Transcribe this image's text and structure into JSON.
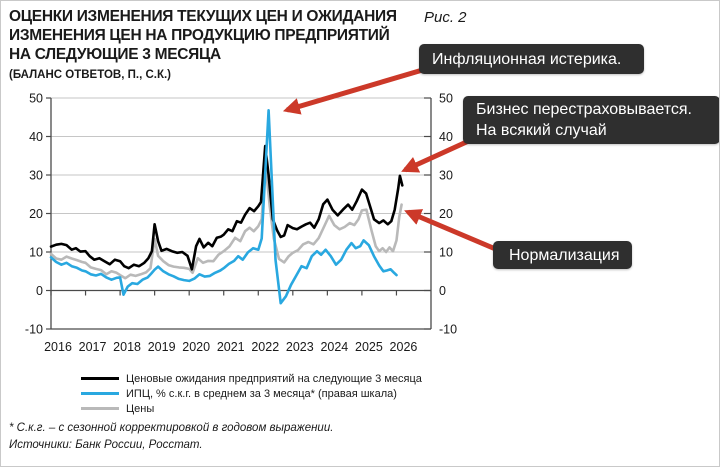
{
  "figure_label": "Рис. 2",
  "title_lines": [
    "ОЦЕНКИ ИЗМЕНЕНИЯ ТЕКУЩИХ ЦЕН И ОЖИДАНИЯ",
    "ИЗМЕНЕНИЯ ЦЕН НА ПРОДУКЦИЮ ПРЕДПРИЯТИЙ",
    "НА СЛЕДУЮЩИЕ 3 МЕСЯЦА"
  ],
  "subtitle": "(БАЛАНС ОТВЕТОВ, П., С.К.)",
  "footnote": "* С.к.г. – с сезонной корректировкой в годовом выражении.",
  "sources": "Источники: Банк России, Росстат.",
  "colors": {
    "annotation_bg": "#2f2f2f",
    "annotation_text": "#ffffff",
    "arrow_red": "#cc3929",
    "grid": "#c6c6c6",
    "axis": "#4a4a4a",
    "text": "#1a1a1a",
    "expectations_line": "#000000",
    "cpi_line": "#29a8e0",
    "prices_line": "#b9b9b9"
  },
  "annotations": [
    {
      "lines": [
        "Инфляционная истерика."
      ],
      "arrow": {
        "from": [
          452,
          60
        ],
        "to": [
          286,
          109
        ]
      }
    },
    {
      "lines": [
        "Бизнес перестраховывается.",
        "На всякий случай"
      ],
      "arrow": {
        "from": [
          472,
          138
        ],
        "to": [
          404,
          169
        ]
      }
    },
    {
      "lines": [
        "Нормализация"
      ],
      "arrow": {
        "from": [
          504,
          252
        ],
        "to": [
          407,
          211
        ]
      }
    }
  ],
  "chart_data": {
    "type": "line",
    "title": "ОЦЕНКИ ИЗМЕНЕНИЯ ТЕКУЩИХ ЦЕН И ОЖИДАНИЯ ИЗМЕНЕНИЯ ЦЕН НА ПРОДУКЦИЮ ПРЕДПРИЯТИЙ НА СЛЕДУЮЩИЕ 3 МЕСЯЦА",
    "subtitle": "(БАЛАНС ОТВЕТОВ, П., С.К.)",
    "x_ticks": [
      2016,
      2017,
      2018,
      2019,
      2020,
      2021,
      2022,
      2023,
      2024,
      2025,
      2026
    ],
    "xlim": [
      2016,
      2027
    ],
    "ylim": [
      -10,
      50
    ],
    "y_ticks": [
      -10,
      0,
      10,
      20,
      30,
      40,
      50
    ],
    "right_axis_mirrors_left": true,
    "grid": true,
    "legend_position": "bottom",
    "series": [
      {
        "name": "Ценовые ожидания предприятий на следующие 3 месяца",
        "color": "#000000",
        "axis": "left",
        "points": [
          [
            2016.0,
            11.4
          ],
          [
            2016.15,
            11.9
          ],
          [
            2016.3,
            12.1
          ],
          [
            2016.45,
            11.8
          ],
          [
            2016.6,
            10.6
          ],
          [
            2016.72,
            11.0
          ],
          [
            2016.85,
            10.1
          ],
          [
            2017.0,
            10.2
          ],
          [
            2017.12,
            8.9
          ],
          [
            2017.25,
            8.0
          ],
          [
            2017.4,
            8.4
          ],
          [
            2017.55,
            7.6
          ],
          [
            2017.7,
            6.8
          ],
          [
            2017.85,
            8.0
          ],
          [
            2018.0,
            7.6
          ],
          [
            2018.12,
            6.3
          ],
          [
            2018.25,
            5.8
          ],
          [
            2018.4,
            6.7
          ],
          [
            2018.55,
            6.3
          ],
          [
            2018.7,
            7.2
          ],
          [
            2018.82,
            8.4
          ],
          [
            2018.92,
            10.2
          ],
          [
            2019.0,
            17.2
          ],
          [
            2019.1,
            12.8
          ],
          [
            2019.2,
            10.3
          ],
          [
            2019.35,
            10.8
          ],
          [
            2019.5,
            10.2
          ],
          [
            2019.65,
            9.8
          ],
          [
            2019.8,
            10.0
          ],
          [
            2019.95,
            9.0
          ],
          [
            2020.08,
            5.5
          ],
          [
            2020.2,
            11.5
          ],
          [
            2020.3,
            13.4
          ],
          [
            2020.42,
            11.2
          ],
          [
            2020.55,
            12.4
          ],
          [
            2020.67,
            11.5
          ],
          [
            2020.8,
            13.7
          ],
          [
            2020.92,
            14.0
          ],
          [
            2021.0,
            14.5
          ],
          [
            2021.13,
            15.9
          ],
          [
            2021.25,
            15.4
          ],
          [
            2021.38,
            18.0
          ],
          [
            2021.5,
            17.6
          ],
          [
            2021.62,
            19.7
          ],
          [
            2021.75,
            21.4
          ],
          [
            2021.88,
            20.6
          ],
          [
            2022.0,
            21.9
          ],
          [
            2022.08,
            23.0
          ],
          [
            2022.2,
            37.5
          ],
          [
            2022.3,
            30.0
          ],
          [
            2022.42,
            18.5
          ],
          [
            2022.55,
            15.5
          ],
          [
            2022.65,
            13.9
          ],
          [
            2022.75,
            14.3
          ],
          [
            2022.85,
            17.0
          ],
          [
            2023.0,
            16.2
          ],
          [
            2023.12,
            15.9
          ],
          [
            2023.25,
            16.6
          ],
          [
            2023.38,
            17.2
          ],
          [
            2023.5,
            17.6
          ],
          [
            2023.62,
            16.3
          ],
          [
            2023.75,
            18.5
          ],
          [
            2023.88,
            22.4
          ],
          [
            2024.0,
            23.6
          ],
          [
            2024.15,
            21.0
          ],
          [
            2024.3,
            19.5
          ],
          [
            2024.45,
            21.0
          ],
          [
            2024.6,
            22.3
          ],
          [
            2024.72,
            21.0
          ],
          [
            2024.85,
            23.2
          ],
          [
            2025.0,
            26.2
          ],
          [
            2025.12,
            25.2
          ],
          [
            2025.25,
            21.5
          ],
          [
            2025.35,
            18.5
          ],
          [
            2025.5,
            17.5
          ],
          [
            2025.62,
            18.2
          ],
          [
            2025.75,
            17.2
          ],
          [
            2025.85,
            18.0
          ],
          [
            2025.95,
            21.0
          ],
          [
            2026.05,
            26.5
          ],
          [
            2026.1,
            29.8
          ],
          [
            2026.17,
            27.3
          ]
        ]
      },
      {
        "name": "ИПЦ, % с.к.г. в среднем за 3 месяца* (правая шкала)",
        "color": "#29a8e0",
        "axis": "right",
        "points": [
          [
            2016.0,
            8.6
          ],
          [
            2016.15,
            7.4
          ],
          [
            2016.3,
            6.7
          ],
          [
            2016.45,
            7.2
          ],
          [
            2016.6,
            6.3
          ],
          [
            2016.75,
            5.9
          ],
          [
            2016.9,
            5.2
          ],
          [
            2017.0,
            5.0
          ],
          [
            2017.15,
            4.2
          ],
          [
            2017.3,
            3.9
          ],
          [
            2017.45,
            4.3
          ],
          [
            2017.6,
            3.4
          ],
          [
            2017.75,
            2.8
          ],
          [
            2017.9,
            3.3
          ],
          [
            2018.0,
            3.4
          ],
          [
            2018.1,
            -1.1
          ],
          [
            2018.22,
            1.0
          ],
          [
            2018.35,
            1.9
          ],
          [
            2018.5,
            1.7
          ],
          [
            2018.65,
            2.8
          ],
          [
            2018.8,
            3.4
          ],
          [
            2018.9,
            4.4
          ],
          [
            2019.0,
            5.4
          ],
          [
            2019.1,
            6.2
          ],
          [
            2019.25,
            5.0
          ],
          [
            2019.4,
            4.2
          ],
          [
            2019.55,
            3.7
          ],
          [
            2019.7,
            3.0
          ],
          [
            2019.85,
            2.7
          ],
          [
            2020.0,
            2.5
          ],
          [
            2020.15,
            3.1
          ],
          [
            2020.3,
            4.2
          ],
          [
            2020.45,
            3.6
          ],
          [
            2020.6,
            3.8
          ],
          [
            2020.75,
            4.6
          ],
          [
            2020.9,
            5.2
          ],
          [
            2021.0,
            5.8
          ],
          [
            2021.15,
            6.9
          ],
          [
            2021.3,
            7.7
          ],
          [
            2021.42,
            8.9
          ],
          [
            2021.55,
            8.0
          ],
          [
            2021.7,
            9.9
          ],
          [
            2021.85,
            11.0
          ],
          [
            2022.0,
            10.6
          ],
          [
            2022.1,
            13.5
          ],
          [
            2022.3,
            46.8
          ],
          [
            2022.5,
            8.0
          ],
          [
            2022.65,
            -3.3
          ],
          [
            2022.8,
            -1.5
          ],
          [
            2022.95,
            1.5
          ],
          [
            2023.1,
            3.9
          ],
          [
            2023.25,
            6.3
          ],
          [
            2023.4,
            5.8
          ],
          [
            2023.55,
            8.9
          ],
          [
            2023.7,
            10.2
          ],
          [
            2023.82,
            9.3
          ],
          [
            2023.95,
            10.6
          ],
          [
            2024.1,
            8.9
          ],
          [
            2024.25,
            6.7
          ],
          [
            2024.4,
            8.0
          ],
          [
            2024.55,
            10.6
          ],
          [
            2024.7,
            12.3
          ],
          [
            2024.82,
            11.0
          ],
          [
            2024.95,
            11.5
          ],
          [
            2025.05,
            13.0
          ],
          [
            2025.2,
            11.8
          ],
          [
            2025.35,
            8.9
          ],
          [
            2025.5,
            6.5
          ],
          [
            2025.62,
            5.0
          ],
          [
            2025.72,
            5.2
          ],
          [
            2025.83,
            5.5
          ],
          [
            2025.92,
            4.7
          ],
          [
            2026.0,
            4.0
          ]
        ]
      },
      {
        "name": "Цены",
        "color": "#b9b9b9",
        "axis": "left",
        "points": [
          [
            2016.0,
            9.5
          ],
          [
            2016.15,
            8.3
          ],
          [
            2016.3,
            8.0
          ],
          [
            2016.45,
            8.8
          ],
          [
            2016.6,
            8.3
          ],
          [
            2016.75,
            7.9
          ],
          [
            2016.9,
            7.4
          ],
          [
            2017.0,
            7.2
          ],
          [
            2017.15,
            6.0
          ],
          [
            2017.3,
            5.6
          ],
          [
            2017.45,
            5.3
          ],
          [
            2017.6,
            4.2
          ],
          [
            2017.75,
            5.0
          ],
          [
            2017.9,
            4.6
          ],
          [
            2018.0,
            4.0
          ],
          [
            2018.15,
            3.2
          ],
          [
            2018.3,
            4.1
          ],
          [
            2018.45,
            3.8
          ],
          [
            2018.6,
            4.2
          ],
          [
            2018.75,
            4.7
          ],
          [
            2018.88,
            5.8
          ],
          [
            2019.0,
            13.4
          ],
          [
            2019.1,
            9.0
          ],
          [
            2019.25,
            7.6
          ],
          [
            2019.4,
            6.6
          ],
          [
            2019.55,
            6.2
          ],
          [
            2019.7,
            6.0
          ],
          [
            2019.85,
            5.9
          ],
          [
            2020.0,
            5.6
          ],
          [
            2020.1,
            4.6
          ],
          [
            2020.25,
            8.4
          ],
          [
            2020.4,
            7.2
          ],
          [
            2020.55,
            7.7
          ],
          [
            2020.7,
            7.6
          ],
          [
            2020.85,
            9.3
          ],
          [
            2021.0,
            10.2
          ],
          [
            2021.17,
            11.5
          ],
          [
            2021.33,
            13.7
          ],
          [
            2021.48,
            12.8
          ],
          [
            2021.62,
            15.4
          ],
          [
            2021.75,
            16.3
          ],
          [
            2021.87,
            15.4
          ],
          [
            2022.0,
            16.7
          ],
          [
            2022.1,
            18.5
          ],
          [
            2022.2,
            33.5
          ],
          [
            2022.33,
            22.0
          ],
          [
            2022.45,
            13.5
          ],
          [
            2022.6,
            8.2
          ],
          [
            2022.75,
            7.3
          ],
          [
            2022.88,
            8.9
          ],
          [
            2023.0,
            9.8
          ],
          [
            2023.15,
            10.5
          ],
          [
            2023.3,
            12.0
          ],
          [
            2023.45,
            12.6
          ],
          [
            2023.6,
            12.0
          ],
          [
            2023.75,
            13.6
          ],
          [
            2023.9,
            16.5
          ],
          [
            2024.05,
            19.4
          ],
          [
            2024.2,
            17.0
          ],
          [
            2024.35,
            15.9
          ],
          [
            2024.5,
            16.5
          ],
          [
            2024.65,
            17.5
          ],
          [
            2024.78,
            17.0
          ],
          [
            2024.9,
            18.5
          ],
          [
            2025.0,
            20.8
          ],
          [
            2025.13,
            21.0
          ],
          [
            2025.28,
            15.5
          ],
          [
            2025.4,
            11.5
          ],
          [
            2025.5,
            10.2
          ],
          [
            2025.6,
            11.0
          ],
          [
            2025.7,
            10.0
          ],
          [
            2025.8,
            11.2
          ],
          [
            2025.9,
            10.2
          ],
          [
            2026.0,
            13.0
          ],
          [
            2026.08,
            19.0
          ],
          [
            2026.15,
            22.3
          ]
        ]
      }
    ]
  }
}
